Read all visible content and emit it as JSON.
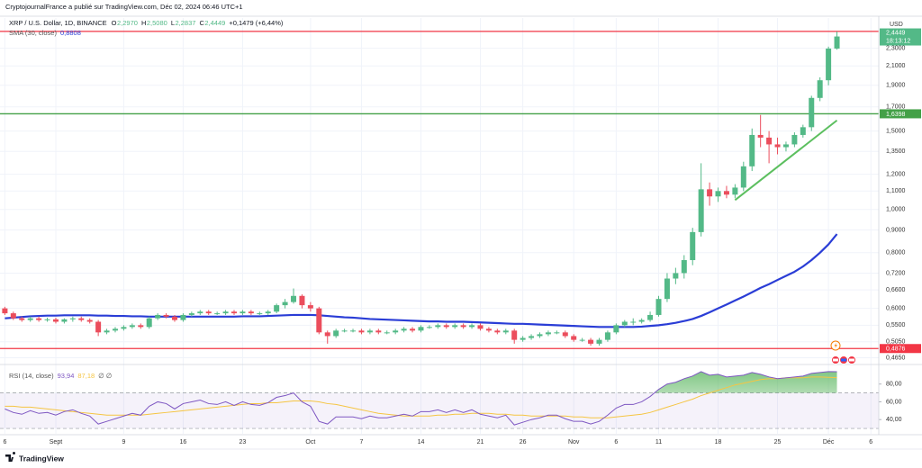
{
  "chart_data": {
    "type": "candlestick",
    "publisher": "CryptojournalFrance a publié sur TradingView.com, Déc 02, 2024 06:46 UTC+1",
    "title": "XRP / U.S. Dollar, 1D, BINANCE",
    "ohlc_legend": [
      "O",
      "2,2970",
      "H",
      "2,5080",
      "L",
      "2,2837",
      "C",
      "2,4449",
      "+0,1479 (+6,44%)"
    ],
    "currency": "USD",
    "brand": "TradingView",
    "last_price_label": "2,4449",
    "countdown": "18:13:12",
    "log_scale": true,
    "grid": true,
    "up_color": "#53b987",
    "down_color": "#eb4d5c",
    "categories": [
      "6",
      null,
      null,
      null,
      null,
      null,
      "Sept",
      null,
      null,
      null,
      null,
      null,
      null,
      null,
      "9",
      null,
      null,
      null,
      null,
      null,
      null,
      "16",
      null,
      null,
      null,
      null,
      null,
      null,
      "23",
      null,
      null,
      null,
      null,
      null,
      null,
      null,
      "Oct",
      null,
      null,
      null,
      null,
      null,
      "7",
      null,
      null,
      null,
      null,
      null,
      null,
      "14",
      null,
      null,
      null,
      null,
      null,
      null,
      "21",
      null,
      null,
      null,
      null,
      "26",
      null,
      null,
      null,
      null,
      null,
      "Nov",
      null,
      null,
      null,
      null,
      "6",
      null,
      null,
      null,
      null,
      "11",
      null,
      null,
      null,
      null,
      null,
      null,
      "18",
      null,
      null,
      null,
      null,
      null,
      null,
      "25",
      null,
      null,
      null,
      null,
      null,
      "Déc",
      null,
      null,
      null,
      null,
      "6"
    ],
    "open": [
      0.6,
      0.585,
      0.57,
      0.565,
      0.57,
      0.565,
      0.567,
      0.56,
      0.567,
      0.57,
      0.565,
      0.56,
      0.53,
      0.535,
      0.54,
      0.545,
      0.55,
      0.545,
      0.57,
      0.58,
      0.575,
      0.565,
      0.58,
      0.585,
      0.59,
      0.585,
      0.585,
      0.59,
      0.585,
      0.59,
      0.585,
      0.585,
      0.59,
      0.61,
      0.62,
      0.64,
      0.61,
      0.6,
      0.53,
      0.52,
      0.535,
      0.535,
      0.535,
      0.53,
      0.535,
      0.53,
      0.53,
      0.535,
      0.54,
      0.535,
      0.545,
      0.545,
      0.55,
      0.545,
      0.55,
      0.545,
      0.55,
      0.54,
      0.535,
      0.53,
      0.535,
      0.51,
      0.515,
      0.52,
      0.525,
      0.53,
      0.53,
      0.52,
      0.51,
      0.51,
      0.5,
      0.51,
      0.53,
      0.55,
      0.56,
      0.56,
      0.565,
      0.58,
      0.63,
      0.7,
      0.72,
      0.77,
      0.89,
      1.11,
      1.07,
      1.1,
      1.08,
      1.12,
      1.25,
      1.47,
      1.45,
      1.4,
      1.38,
      1.4,
      1.47,
      1.53,
      1.78,
      1.95,
      2.297,
      null,
      null,
      null,
      null
    ],
    "high": [
      0.605,
      0.59,
      0.575,
      0.575,
      0.575,
      0.572,
      0.572,
      0.57,
      0.575,
      0.575,
      0.57,
      0.565,
      0.54,
      0.545,
      0.55,
      0.555,
      0.555,
      0.575,
      0.585,
      0.585,
      0.58,
      0.585,
      0.59,
      0.595,
      0.595,
      0.59,
      0.595,
      0.595,
      0.595,
      0.595,
      0.59,
      0.595,
      0.615,
      0.63,
      0.665,
      0.645,
      0.62,
      0.605,
      0.535,
      0.54,
      0.54,
      0.54,
      0.54,
      0.54,
      0.54,
      0.535,
      0.54,
      0.545,
      0.545,
      0.55,
      0.55,
      0.555,
      0.555,
      0.555,
      0.555,
      0.555,
      0.555,
      0.545,
      0.54,
      0.54,
      0.54,
      0.52,
      0.525,
      0.53,
      0.535,
      0.535,
      0.535,
      0.525,
      0.515,
      0.515,
      0.515,
      0.535,
      0.555,
      0.565,
      0.57,
      0.57,
      0.59,
      0.64,
      0.72,
      0.74,
      0.79,
      0.91,
      1.27,
      1.15,
      1.12,
      1.13,
      1.14,
      1.28,
      1.52,
      1.63,
      1.5,
      1.45,
      1.42,
      1.49,
      1.55,
      1.8,
      1.98,
      2.32,
      2.508,
      null,
      null,
      null,
      null
    ],
    "low": [
      0.58,
      0.565,
      0.56,
      0.56,
      0.56,
      0.56,
      0.555,
      0.555,
      0.56,
      0.56,
      0.555,
      0.52,
      0.525,
      0.53,
      0.535,
      0.54,
      0.54,
      0.54,
      0.565,
      0.57,
      0.56,
      0.56,
      0.575,
      0.58,
      0.58,
      0.58,
      0.58,
      0.58,
      0.58,
      0.58,
      0.58,
      0.58,
      0.585,
      0.6,
      0.615,
      0.6,
      0.59,
      0.525,
      0.5,
      0.515,
      0.53,
      0.53,
      0.525,
      0.525,
      0.525,
      0.525,
      0.525,
      0.53,
      0.53,
      0.53,
      0.54,
      0.54,
      0.54,
      0.54,
      0.54,
      0.54,
      0.535,
      0.53,
      0.525,
      0.525,
      0.5,
      0.505,
      0.51,
      0.515,
      0.52,
      0.525,
      0.515,
      0.505,
      0.505,
      0.495,
      0.495,
      0.505,
      0.525,
      0.545,
      0.55,
      0.555,
      0.56,
      0.575,
      0.62,
      0.68,
      0.7,
      0.75,
      0.87,
      1.02,
      1.04,
      1.06,
      1.06,
      1.1,
      1.22,
      1.38,
      1.27,
      1.33,
      1.35,
      1.38,
      1.45,
      1.5,
      1.75,
      1.9,
      2.2837,
      null,
      null,
      null,
      null
    ],
    "close": [
      0.585,
      0.57,
      0.565,
      0.57,
      0.565,
      0.567,
      0.56,
      0.567,
      0.57,
      0.565,
      0.56,
      0.53,
      0.535,
      0.54,
      0.545,
      0.55,
      0.545,
      0.57,
      0.58,
      0.575,
      0.565,
      0.58,
      0.585,
      0.59,
      0.585,
      0.585,
      0.59,
      0.585,
      0.59,
      0.585,
      0.585,
      0.59,
      0.61,
      0.62,
      0.64,
      0.61,
      0.6,
      0.53,
      0.52,
      0.535,
      0.535,
      0.535,
      0.53,
      0.535,
      0.53,
      0.53,
      0.535,
      0.54,
      0.535,
      0.545,
      0.545,
      0.55,
      0.545,
      0.55,
      0.545,
      0.55,
      0.54,
      0.535,
      0.53,
      0.535,
      0.51,
      0.515,
      0.52,
      0.525,
      0.53,
      0.53,
      0.52,
      0.51,
      0.51,
      0.5,
      0.51,
      0.53,
      0.55,
      0.56,
      0.56,
      0.565,
      0.58,
      0.63,
      0.7,
      0.72,
      0.77,
      0.89,
      1.11,
      1.07,
      1.1,
      1.08,
      1.12,
      1.25,
      1.47,
      1.45,
      1.4,
      1.38,
      1.4,
      1.47,
      1.53,
      1.78,
      1.95,
      2.297,
      2.4449,
      null,
      null,
      null,
      null
    ],
    "series": [
      {
        "name": "SMA (30, close)",
        "color": "#2a3dd6",
        "last_label": "0,8808",
        "values": [
          0.57,
          0.572,
          0.574,
          0.576,
          0.577,
          0.578,
          0.578,
          0.579,
          0.579,
          0.579,
          0.579,
          0.578,
          0.578,
          0.577,
          0.577,
          0.576,
          0.576,
          0.575,
          0.575,
          0.575,
          0.575,
          0.575,
          0.575,
          0.575,
          0.575,
          0.575,
          0.575,
          0.575,
          0.576,
          0.576,
          0.576,
          0.577,
          0.578,
          0.579,
          0.58,
          0.58,
          0.58,
          0.579,
          0.577,
          0.575,
          0.573,
          0.572,
          0.57,
          0.568,
          0.567,
          0.566,
          0.565,
          0.564,
          0.563,
          0.562,
          0.561,
          0.561,
          0.56,
          0.56,
          0.56,
          0.559,
          0.558,
          0.557,
          0.556,
          0.555,
          0.554,
          0.554,
          0.553,
          0.552,
          0.551,
          0.55,
          0.549,
          0.548,
          0.547,
          0.546,
          0.545,
          0.545,
          0.545,
          0.545,
          0.545,
          0.546,
          0.548,
          0.55,
          0.553,
          0.557,
          0.562,
          0.568,
          0.577,
          0.588,
          0.6,
          0.612,
          0.625,
          0.638,
          0.652,
          0.667,
          0.68,
          0.695,
          0.71,
          0.725,
          0.745,
          0.77,
          0.8,
          0.835,
          0.8808,
          null,
          null,
          null,
          null
        ]
      }
    ],
    "ylim": [
      0.449,
      2.69
    ],
    "yticks": [
      {
        "value": 0.465,
        "label": "0,4650"
      },
      {
        "value": 0.505,
        "label": "0,5050"
      },
      {
        "value": 0.55,
        "label": "0,5500"
      },
      {
        "value": 0.6,
        "label": "0,6000"
      },
      {
        "value": 0.66,
        "label": "0,6600"
      },
      {
        "value": 0.72,
        "label": "0,7200"
      },
      {
        "value": 0.8,
        "label": "0,8000"
      },
      {
        "value": 0.9,
        "label": "0,9000"
      },
      {
        "value": 1.0,
        "label": "1,0000"
      },
      {
        "value": 1.1,
        "label": "1,1000"
      },
      {
        "value": 1.2,
        "label": "1,2000"
      },
      {
        "value": 1.35,
        "label": "1,3500"
      },
      {
        "value": 1.5,
        "label": "1,5000"
      },
      {
        "value": 1.7,
        "label": "1,7000"
      },
      {
        "value": 1.9,
        "label": "1,9000"
      },
      {
        "value": 2.1,
        "label": "2,1000"
      },
      {
        "value": 2.3,
        "label": "2,3000"
      }
    ],
    "hlines": [
      {
        "value": 2.51,
        "color": "#f23645"
      },
      {
        "value": 1.6398,
        "label": "1,6398",
        "color": "#43a047"
      },
      {
        "value": 0.4876,
        "label": "0,4876",
        "color": "#f23645"
      }
    ],
    "trendline": {
      "start_index": 86,
      "start_value": 1.05,
      "end_index": 98,
      "end_value": 1.585,
      "color": "#5cbf5f"
    },
    "rsi": {
      "name": "RSI (14, close)",
      "legend_tail": "∅ ∅",
      "ylim": [
        24,
        102
      ],
      "yticks": [
        {
          "value": 40,
          "label": "40,00"
        },
        {
          "value": 60,
          "label": "60,00"
        },
        {
          "value": 80,
          "label": "80,00"
        }
      ],
      "band": [
        30,
        70
      ],
      "band_color": "#7e57c2",
      "fill_color": "#4caf50",
      "series": [
        {
          "color": "#7e57c2",
          "last_label": "93,94",
          "values": [
            52,
            48,
            46,
            50,
            47,
            48,
            45,
            49,
            51,
            47,
            44,
            35,
            38,
            41,
            44,
            47,
            45,
            55,
            60,
            58,
            52,
            58,
            60,
            62,
            58,
            57,
            60,
            56,
            60,
            57,
            56,
            59,
            65,
            67,
            70,
            60,
            55,
            38,
            35,
            43,
            43,
            43,
            41,
            44,
            42,
            42,
            44,
            46,
            44,
            49,
            49,
            51,
            48,
            51,
            48,
            51,
            46,
            44,
            42,
            45,
            34,
            37,
            40,
            42,
            45,
            45,
            41,
            38,
            38,
            35,
            38,
            45,
            53,
            57,
            57,
            60,
            66,
            74,
            80,
            82,
            86,
            89,
            94,
            90,
            91,
            88,
            89,
            90,
            93,
            91,
            88,
            86,
            87,
            88,
            89,
            92,
            93,
            94,
            93.94,
            null,
            null,
            null,
            null
          ]
        },
        {
          "color": "#f5c542",
          "last_label": "87,18",
          "values": [
            55,
            55,
            54,
            54,
            53,
            52,
            51,
            50,
            49,
            48,
            47,
            46,
            45,
            45,
            45,
            45,
            45,
            46,
            47,
            48,
            49,
            50,
            51,
            52,
            53,
            54,
            55,
            56,
            57,
            58,
            58,
            59,
            59,
            60,
            61,
            61,
            61,
            60,
            58,
            57,
            55,
            53,
            51,
            49,
            47,
            46,
            45,
            44,
            44,
            44,
            44,
            45,
            45,
            46,
            46,
            47,
            47,
            47,
            46,
            46,
            45,
            45,
            44,
            44,
            44,
            44,
            44,
            43,
            43,
            42,
            42,
            42,
            43,
            44,
            45,
            46,
            48,
            51,
            54,
            57,
            60,
            63,
            67,
            70,
            73,
            76,
            79,
            81,
            83,
            85,
            86,
            86,
            87,
            87,
            87,
            88,
            88,
            87.5,
            87.18,
            null,
            null,
            null,
            null
          ]
        }
      ]
    }
  }
}
